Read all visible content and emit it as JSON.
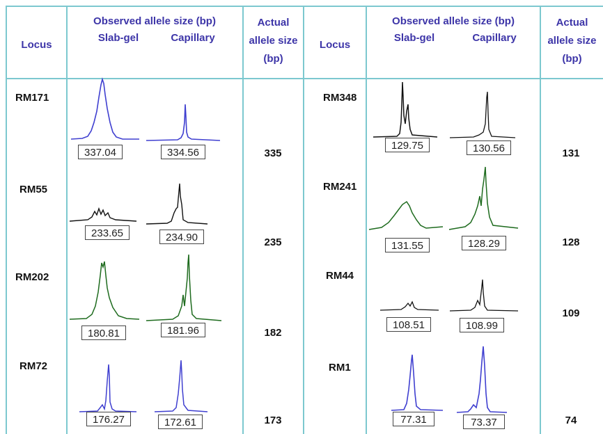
{
  "headers": {
    "locus": "Locus",
    "observed": "Observed allele size (bp)",
    "slab": "Slab-gel",
    "capillary": "Capillary",
    "actual_1": "Actual",
    "actual_2": "allele size",
    "actual_3": "(bp)"
  },
  "rows": [
    {
      "locus": "RM171",
      "slab": "337.04",
      "capillary": "334.56",
      "actual": "335",
      "color": "#3f3fd0"
    },
    {
      "locus": "RM55",
      "slab": "233.65",
      "capillary": "234.90",
      "actual": "235",
      "color": "#111111"
    },
    {
      "locus": "RM202",
      "slab": "180.81",
      "capillary": "181.96",
      "actual": "182",
      "color": "#1e6b1e"
    },
    {
      "locus": "RM72",
      "slab": "176.27",
      "capillary": "172.61",
      "actual": "173",
      "color": "#3f3fd0"
    },
    {
      "locus": "RM348",
      "slab": "129.75",
      "capillary": "130.56",
      "actual": "131",
      "color": "#111111"
    },
    {
      "locus": "RM241",
      "slab": "131.55",
      "capillary": "128.29",
      "actual": "128",
      "color": "#1e6b1e"
    },
    {
      "locus": "RM44",
      "slab": "108.51",
      "capillary": "108.99",
      "actual": "109",
      "color": "#111111"
    },
    {
      "locus": "RM1",
      "slab": "77.31",
      "capillary": "73.37",
      "actual": "74",
      "color": "#3f3fd0"
    }
  ]
}
